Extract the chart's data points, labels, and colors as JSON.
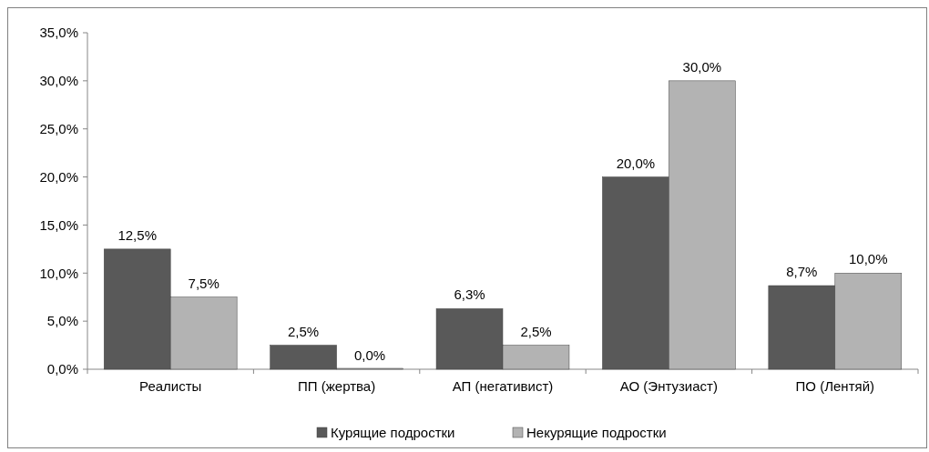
{
  "chart_data": {
    "type": "bar",
    "categories": [
      "Реалисты",
      "ПП (жертва)",
      "АП (негативист)",
      "АО (Энтузиаст)",
      "ПО (Лентяй)"
    ],
    "series": [
      {
        "name": "Курящие подростки",
        "color": "#595959",
        "values": [
          12.5,
          2.5,
          6.3,
          20.0,
          8.7
        ],
        "value_labels": [
          "12,5%",
          "2,5%",
          "6,3%",
          "20,0%",
          "8,7%"
        ]
      },
      {
        "name": "Некурящие подростки",
        "color": "#b3b3b3",
        "values": [
          7.5,
          0.0,
          2.5,
          30.0,
          10.0
        ],
        "value_labels": [
          "7,5%",
          "0,0%",
          "2,5%",
          "30,0%",
          "10,0%"
        ]
      }
    ],
    "ylim": [
      0,
      35
    ],
    "yticks": [
      {
        "value": 0,
        "label": "0,0%"
      },
      {
        "value": 5,
        "label": "5,0%"
      },
      {
        "value": 10,
        "label": "10,0%"
      },
      {
        "value": 15,
        "label": "15,0%"
      },
      {
        "value": 20,
        "label": "20,0%"
      },
      {
        "value": 25,
        "label": "25,0%"
      },
      {
        "value": 30,
        "label": "30,0%"
      },
      {
        "value": 35,
        "label": "35,0%"
      }
    ],
    "grid": false,
    "legend": "bottom"
  }
}
